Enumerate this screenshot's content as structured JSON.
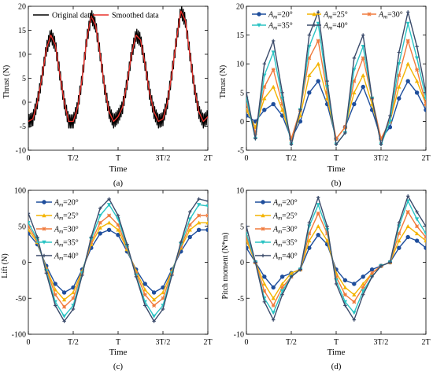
{
  "colors": {
    "orig": "#000000",
    "smooth": "#e8302a",
    "s20": "#1f4e9c",
    "s25": "#f4b400",
    "s30": "#f07a3c",
    "s35": "#2bc4c4",
    "s40": "#3a4a6a"
  },
  "chart_data": [
    {
      "id": "a",
      "type": "line",
      "caption": "(a)",
      "xlabel": "Time",
      "ylabel": "Thrust (N)",
      "ylim": [
        -10,
        20
      ],
      "yticks": [
        "-10",
        "-5",
        "0",
        "5",
        "10",
        "15",
        "20"
      ],
      "xlim": [
        0,
        2
      ],
      "xtick_values": [
        0,
        0.5,
        1,
        1.5,
        2
      ],
      "xticks": [
        "0",
        "T/2",
        "T",
        "3T/2",
        "2T"
      ],
      "legend_position": "top",
      "series": [
        {
          "name": "Original data",
          "color_key": "orig",
          "noisy": true,
          "x": [
            0,
            0.05,
            0.1,
            0.15,
            0.2,
            0.25,
            0.3,
            0.35,
            0.4,
            0.45,
            0.5,
            0.55,
            0.6,
            0.65,
            0.7,
            0.75,
            0.8,
            0.85,
            0.9,
            0.95,
            1,
            1.05,
            1.1,
            1.15,
            1.2,
            1.25,
            1.3,
            1.35,
            1.4,
            1.45,
            1.5,
            1.55,
            1.6,
            1.65,
            1.7,
            1.75,
            1.8,
            1.85,
            1.9,
            1.95,
            2
          ],
          "y": [
            -4,
            -3.5,
            0,
            5,
            11,
            14,
            12,
            6,
            0,
            -4,
            -4,
            -1,
            5,
            13,
            18,
            16,
            10,
            3,
            -2,
            -4,
            -3,
            -1,
            4,
            10,
            14,
            13,
            8,
            2,
            -2,
            -4,
            -3.5,
            0,
            6,
            13,
            19,
            17,
            10,
            3,
            -2,
            -4,
            -3
          ]
        },
        {
          "name": "Smoothed data",
          "color_key": "smooth",
          "noisy": false,
          "x": [
            0,
            0.05,
            0.1,
            0.15,
            0.2,
            0.25,
            0.3,
            0.35,
            0.4,
            0.45,
            0.5,
            0.55,
            0.6,
            0.65,
            0.7,
            0.75,
            0.8,
            0.85,
            0.9,
            0.95,
            1,
            1.05,
            1.1,
            1.15,
            1.2,
            1.25,
            1.3,
            1.35,
            1.4,
            1.45,
            1.5,
            1.55,
            1.6,
            1.65,
            1.7,
            1.75,
            1.8,
            1.85,
            1.9,
            1.95,
            2
          ],
          "y": [
            -4,
            -3.5,
            0,
            5,
            11,
            14,
            12,
            6,
            0,
            -4,
            -4,
            -1,
            5,
            13,
            18,
            16,
            10,
            3,
            -2,
            -4,
            -3,
            -1,
            4,
            10,
            14,
            13,
            8,
            2,
            -2,
            -4,
            -3.5,
            0,
            6,
            13,
            19,
            17,
            10,
            3,
            -2,
            -4,
            -3
          ]
        }
      ]
    },
    {
      "id": "b",
      "type": "line",
      "caption": "(b)",
      "xlabel": "Time",
      "ylabel": "Thrust (N)",
      "ylim": [
        -5,
        20
      ],
      "yticks": [
        "-5",
        "0",
        "5",
        "10",
        "15",
        "20"
      ],
      "xlim": [
        0,
        2
      ],
      "xtick_values": [
        0,
        0.5,
        1,
        1.5,
        2
      ],
      "xticks": [
        "0",
        "T/2",
        "T",
        "3T/2",
        "2T"
      ],
      "legend_position": "top",
      "series": [
        {
          "name": "=20°",
          "color_key": "s20",
          "marker": "circle",
          "x": [
            0,
            0.1,
            0.2,
            0.3,
            0.4,
            0.5,
            0.6,
            0.7,
            0.8,
            0.9,
            1,
            1.1,
            1.2,
            1.3,
            1.4,
            1.5,
            1.6,
            1.7,
            1.8,
            1.9,
            2
          ],
          "y": [
            1,
            0,
            2,
            3,
            1,
            -3,
            0,
            5,
            7,
            3,
            -3,
            -1,
            3,
            6,
            2,
            -3,
            -1,
            4,
            7,
            5,
            2
          ]
        },
        {
          "name": "=25°",
          "color_key": "s25",
          "marker": "triangle",
          "x": [
            0,
            0.1,
            0.2,
            0.3,
            0.4,
            0.5,
            0.6,
            0.7,
            0.8,
            0.9,
            1,
            1.1,
            1.2,
            1.3,
            1.4,
            1.5,
            1.6,
            1.7,
            1.8,
            1.9,
            2
          ],
          "y": [
            2,
            -1,
            4,
            6,
            2,
            -3,
            1,
            8,
            10,
            4,
            -3,
            -1,
            5,
            8,
            3,
            -3,
            0,
            6,
            10,
            7,
            3
          ]
        },
        {
          "name": "=30°",
          "color_key": "s30",
          "marker": "star",
          "x": [
            0,
            0.1,
            0.2,
            0.3,
            0.4,
            0.5,
            0.6,
            0.7,
            0.8,
            0.9,
            1,
            1.1,
            1.2,
            1.3,
            1.4,
            1.5,
            1.6,
            1.7,
            1.8,
            1.9,
            2
          ],
          "y": [
            3,
            -2,
            6,
            9,
            3,
            -3,
            2,
            11,
            14,
            5,
            -3,
            -1,
            7,
            11,
            4,
            -3,
            0,
            8,
            14,
            9,
            3
          ]
        },
        {
          "name": "=35°",
          "color_key": "s35",
          "marker": "triangle-down",
          "x": [
            0,
            0.1,
            0.2,
            0.3,
            0.4,
            0.5,
            0.6,
            0.7,
            0.8,
            0.9,
            1,
            1.1,
            1.2,
            1.3,
            1.4,
            1.5,
            1.6,
            1.7,
            1.8,
            1.9,
            2
          ],
          "y": [
            4,
            -3,
            8,
            12,
            4,
            -4,
            2,
            13,
            17,
            6,
            -4,
            -2,
            9,
            13,
            4,
            -4,
            0,
            10,
            17,
            11,
            4
          ]
        },
        {
          "name": "=40°",
          "color_key": "s40",
          "marker": "plus",
          "x": [
            0,
            0.1,
            0.2,
            0.3,
            0.4,
            0.5,
            0.6,
            0.7,
            0.8,
            0.9,
            1,
            1.1,
            1.2,
            1.3,
            1.4,
            1.5,
            1.6,
            1.7,
            1.8,
            1.9,
            2
          ],
          "y": [
            5,
            -3,
            10,
            14,
            5,
            -4,
            2,
            15,
            19,
            7,
            -4,
            -2,
            11,
            15,
            4,
            -4,
            1,
            12,
            19,
            13,
            5
          ]
        }
      ]
    },
    {
      "id": "c",
      "type": "line",
      "caption": "(c)",
      "xlabel": "Time",
      "ylabel": "Lift (N)",
      "ylim": [
        -100,
        100
      ],
      "yticks": [
        "-100",
        "-50",
        "0",
        "50",
        "100"
      ],
      "xlim": [
        0,
        2
      ],
      "xtick_values": [
        0,
        0.5,
        1,
        1.5,
        2
      ],
      "xticks": [
        "0",
        "T/2",
        "T",
        "3T/2",
        "2T"
      ],
      "legend_position": "top-left",
      "series": [
        {
          "name": "=20°",
          "color_key": "s20",
          "marker": "circle",
          "x": [
            0,
            0.1,
            0.2,
            0.3,
            0.4,
            0.5,
            0.6,
            0.7,
            0.8,
            0.9,
            1,
            1.1,
            1.2,
            1.3,
            1.4,
            1.5,
            1.6,
            1.7,
            1.8,
            1.9,
            2
          ],
          "y": [
            40,
            25,
            -5,
            -30,
            -42,
            -35,
            -10,
            20,
            40,
            45,
            38,
            15,
            -10,
            -30,
            -42,
            -35,
            -10,
            15,
            35,
            45,
            45
          ]
        },
        {
          "name": "=25°",
          "color_key": "s25",
          "marker": "triangle",
          "x": [
            0,
            0.1,
            0.2,
            0.3,
            0.4,
            0.5,
            0.6,
            0.7,
            0.8,
            0.9,
            1,
            1.1,
            1.2,
            1.3,
            1.4,
            1.5,
            1.6,
            1.7,
            1.8,
            1.9,
            2
          ],
          "y": [
            45,
            28,
            -8,
            -38,
            -52,
            -42,
            -12,
            25,
            48,
            55,
            45,
            18,
            -12,
            -38,
            -52,
            -42,
            -12,
            20,
            45,
            55,
            55
          ]
        },
        {
          "name": "=30°",
          "color_key": "s30",
          "marker": "star",
          "x": [
            0,
            0.1,
            0.2,
            0.3,
            0.4,
            0.5,
            0.6,
            0.7,
            0.8,
            0.9,
            1,
            1.1,
            1.2,
            1.3,
            1.4,
            1.5,
            1.6,
            1.7,
            1.8,
            1.9,
            2
          ],
          "y": [
            50,
            30,
            -10,
            -45,
            -62,
            -50,
            -14,
            28,
            55,
            65,
            52,
            20,
            -15,
            -45,
            -60,
            -50,
            -14,
            22,
            52,
            65,
            65
          ]
        },
        {
          "name": "=35°",
          "color_key": "s35",
          "marker": "triangle-down",
          "x": [
            0,
            0.1,
            0.2,
            0.3,
            0.4,
            0.5,
            0.6,
            0.7,
            0.8,
            0.9,
            1,
            1.1,
            1.2,
            1.3,
            1.4,
            1.5,
            1.6,
            1.7,
            1.8,
            1.9,
            2
          ],
          "y": [
            55,
            32,
            -12,
            -55,
            -75,
            -60,
            -15,
            32,
            65,
            80,
            60,
            22,
            -18,
            -55,
            -75,
            -60,
            -15,
            25,
            60,
            80,
            78
          ]
        },
        {
          "name": "=40°",
          "color_key": "s40",
          "marker": "plus",
          "x": [
            0,
            0.1,
            0.2,
            0.3,
            0.4,
            0.5,
            0.6,
            0.7,
            0.8,
            0.9,
            1,
            1.1,
            1.2,
            1.3,
            1.4,
            1.5,
            1.6,
            1.7,
            1.8,
            1.9,
            2
          ],
          "y": [
            68,
            35,
            -15,
            -60,
            -82,
            -65,
            -18,
            35,
            75,
            88,
            65,
            25,
            -20,
            -60,
            -82,
            -65,
            -18,
            28,
            70,
            88,
            85
          ]
        }
      ]
    },
    {
      "id": "d",
      "type": "line",
      "caption": "(d)",
      "xlabel": "Time",
      "ylabel": "Pitch moment (N*m)",
      "ylim": [
        -10,
        10
      ],
      "yticks": [
        "-10",
        "-5",
        "0",
        "5",
        "10"
      ],
      "xlim": [
        0,
        2
      ],
      "xtick_values": [
        0,
        0.5,
        1,
        1.5,
        2
      ],
      "xticks": [
        "0",
        "T/2",
        "T",
        "3T/2",
        "2T"
      ],
      "legend_position": "top-left",
      "series": [
        {
          "name": "=20°",
          "color_key": "s20",
          "marker": "circle",
          "x": [
            0,
            0.1,
            0.2,
            0.3,
            0.4,
            0.5,
            0.6,
            0.7,
            0.8,
            0.9,
            1,
            1.1,
            1.2,
            1.3,
            1.4,
            1.5,
            1.6,
            1.7,
            1.8,
            1.9,
            2
          ],
          "y": [
            2,
            0,
            -2,
            -3.5,
            -2,
            -1.5,
            -1,
            2,
            3.8,
            2.5,
            -1,
            -2.5,
            -3,
            -2,
            -1,
            -0.5,
            0,
            2,
            3.5,
            3,
            2
          ]
        },
        {
          "name": "=25°",
          "color_key": "s25",
          "marker": "triangle",
          "x": [
            0,
            0.1,
            0.2,
            0.3,
            0.4,
            0.5,
            0.6,
            0.7,
            0.8,
            0.9,
            1,
            1.1,
            1.2,
            1.3,
            1.4,
            1.5,
            1.6,
            1.7,
            1.8,
            1.9,
            2
          ],
          "y": [
            3,
            0,
            -3,
            -5,
            -3,
            -1.5,
            -1,
            3,
            5,
            3,
            -1.5,
            -3.5,
            -4.5,
            -3,
            -1.5,
            -0.5,
            0,
            3,
            5,
            4,
            3
          ]
        },
        {
          "name": "=30°",
          "color_key": "s30",
          "marker": "star",
          "x": [
            0,
            0.1,
            0.2,
            0.3,
            0.4,
            0.5,
            0.6,
            0.7,
            0.8,
            0.9,
            1,
            1.1,
            1.2,
            1.3,
            1.4,
            1.5,
            1.6,
            1.7,
            1.8,
            1.9,
            2
          ],
          "y": [
            3.5,
            0,
            -4,
            -6,
            -3.5,
            -2,
            -1,
            4,
            6.8,
            4,
            -2,
            -4.5,
            -5.5,
            -3.5,
            -1.5,
            -0.5,
            0,
            4,
            7,
            5,
            3.5
          ]
        },
        {
          "name": "=35°",
          "color_key": "s35",
          "marker": "triangle-down",
          "x": [
            0,
            0.1,
            0.2,
            0.3,
            0.4,
            0.5,
            0.6,
            0.7,
            0.8,
            0.9,
            1,
            1.1,
            1.2,
            1.3,
            1.4,
            1.5,
            1.6,
            1.7,
            1.8,
            1.9,
            2
          ],
          "y": [
            4,
            0,
            -5,
            -7,
            -4,
            -2,
            -1,
            5,
            8,
            4.5,
            -2.5,
            -5.5,
            -7,
            -4,
            -2,
            -0.5,
            0,
            5,
            8.5,
            6,
            4
          ]
        },
        {
          "name": "=40°",
          "color_key": "s40",
          "marker": "plus",
          "x": [
            0,
            0.1,
            0.2,
            0.3,
            0.4,
            0.5,
            0.6,
            0.7,
            0.8,
            0.9,
            1,
            1.1,
            1.2,
            1.3,
            1.4,
            1.5,
            1.6,
            1.7,
            1.8,
            1.9,
            2
          ],
          "y": [
            5,
            0,
            -5.5,
            -8,
            -4.5,
            -2,
            -1,
            5.5,
            9,
            5,
            -3,
            -6,
            -8,
            -4.5,
            -2,
            -0.5,
            0,
            5.5,
            9.2,
            7,
            5
          ]
        }
      ]
    }
  ]
}
